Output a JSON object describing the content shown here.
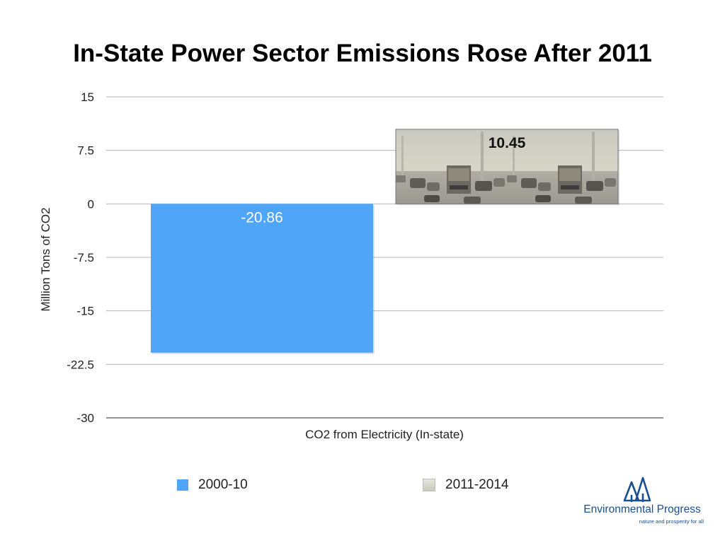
{
  "chart_data": {
    "type": "bar",
    "title": "In-State Power Sector Emissions Rose After 2011",
    "ylabel": "Million Tons of CO2",
    "categories": [
      "CO2 from Electricity (In-state)"
    ],
    "series": [
      {
        "name": "2000-10",
        "values": [
          -20.86
        ],
        "color": "#4fa5f8",
        "label": "-20.86"
      },
      {
        "name": "2011-2014",
        "values": [
          10.45
        ],
        "color": "#d8d8cf",
        "label": "10.45",
        "fill": "photo-smog-traffic"
      }
    ],
    "ylim": [
      -30,
      15
    ],
    "yticks": [
      15,
      7.5,
      0,
      -7.5,
      -15,
      -22.5,
      -30
    ],
    "ytick_labels": [
      "15",
      "7.5",
      "0",
      "-7.5",
      "-15",
      "-22.5",
      "-30"
    ],
    "grid": true,
    "legend_position": "bottom"
  },
  "branding": {
    "name": "Environmental Progress",
    "tagline": "nature and prosperity for all",
    "color": "#1c4f8f"
  }
}
